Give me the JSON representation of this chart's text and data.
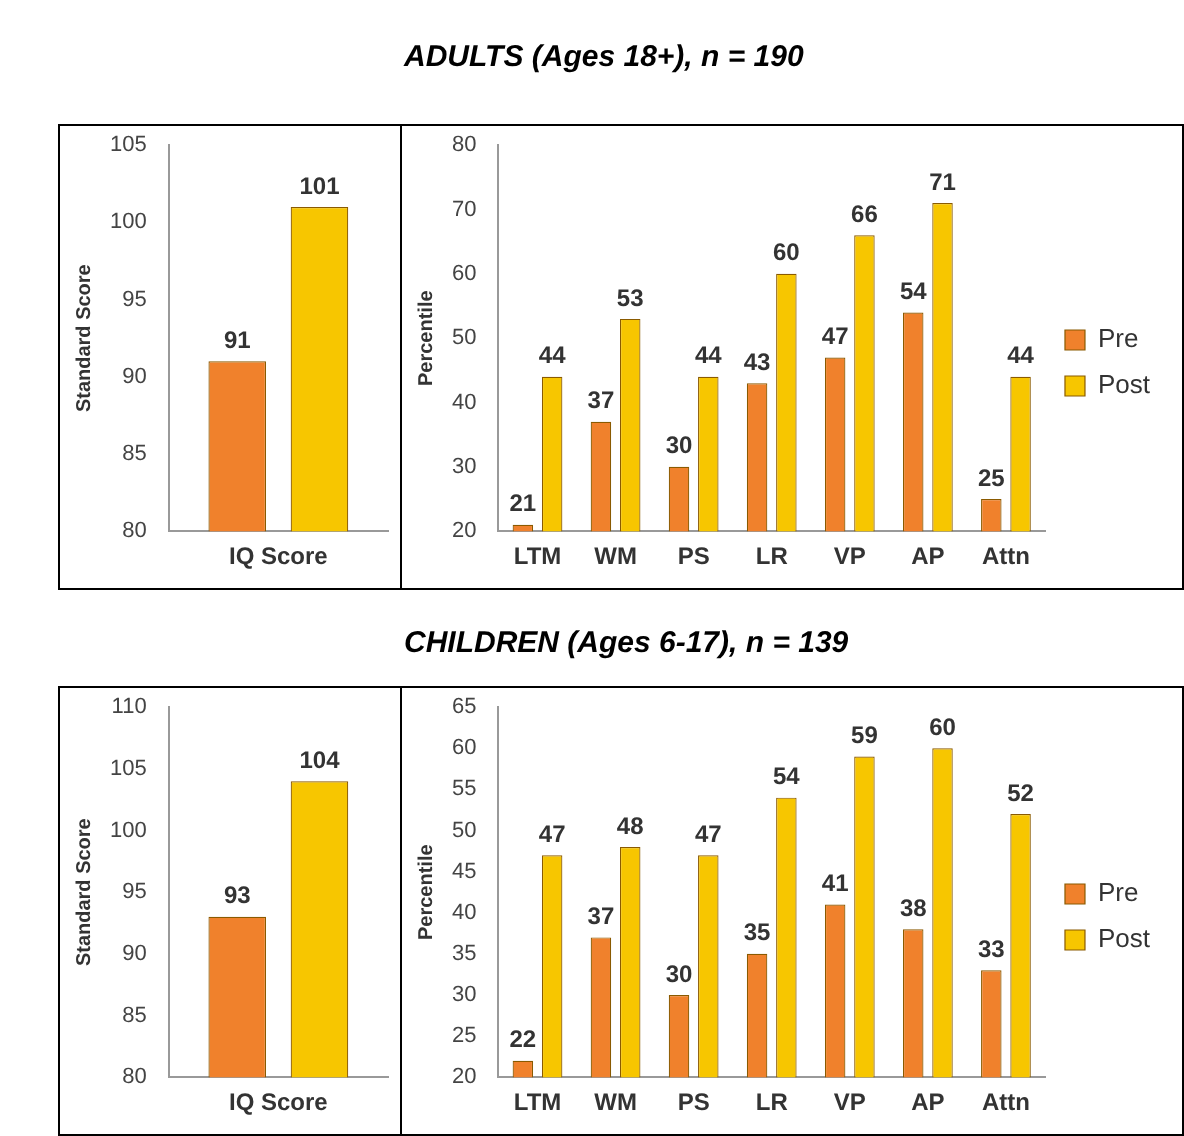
{
  "chart_data": [
    {
      "type": "bar",
      "categories": [
        "IQ Score"
      ],
      "ylabel": "Standard Score",
      "ylim": [
        80,
        105
      ],
      "yticks": [
        80,
        85,
        90,
        95,
        100,
        105
      ],
      "grid": false,
      "legend": false,
      "data_labels": true,
      "series": [
        {
          "color": "#f0812c",
          "values": [
            91
          ]
        },
        {
          "color": "#f7c600",
          "values": [
            101
          ]
        }
      ]
    },
    {
      "type": "bar",
      "title": "ADULTS (Ages 18+), n = 190",
      "categories": [
        "LTM",
        "WM",
        "PS",
        "LR",
        "VP",
        "AP",
        "Attn"
      ],
      "ylabel": "Percentile",
      "ylim": [
        20,
        80
      ],
      "yticks": [
        20,
        30,
        40,
        50,
        60,
        70,
        80
      ],
      "grid": false,
      "legend": "right",
      "data_labels": true,
      "series": [
        {
          "name": "Pre",
          "color": "#f0812c",
          "values": [
            21,
            37,
            30,
            43,
            47,
            54,
            25
          ]
        },
        {
          "name": "Post",
          "color": "#f7c600",
          "values": [
            44,
            53,
            44,
            60,
            66,
            71,
            44
          ]
        }
      ]
    },
    {
      "type": "bar",
      "categories": [
        "IQ Score"
      ],
      "ylabel": "Standard Score",
      "ylim": [
        80,
        110
      ],
      "yticks": [
        80,
        85,
        90,
        95,
        100,
        105,
        110
      ],
      "grid": false,
      "legend": false,
      "data_labels": true,
      "series": [
        {
          "color": "#f0812c",
          "values": [
            93
          ]
        },
        {
          "color": "#f7c600",
          "values": [
            104
          ]
        }
      ]
    },
    {
      "type": "bar",
      "title": "CHILDREN (Ages 6-17), n = 139",
      "categories": [
        "LTM",
        "WM",
        "PS",
        "LR",
        "VP",
        "AP",
        "Attn"
      ],
      "ylabel": "Percentile",
      "ylim": [
        20,
        65
      ],
      "yticks": [
        20,
        25,
        30,
        35,
        40,
        45,
        50,
        55,
        60,
        65
      ],
      "grid": false,
      "legend": "right",
      "data_labels": true,
      "series": [
        {
          "name": "Pre",
          "color": "#f0812c",
          "values": [
            22,
            37,
            30,
            35,
            41,
            38,
            33
          ]
        },
        {
          "name": "Post",
          "color": "#f7c600",
          "values": [
            47,
            48,
            47,
            54,
            59,
            60,
            52
          ]
        }
      ]
    }
  ]
}
